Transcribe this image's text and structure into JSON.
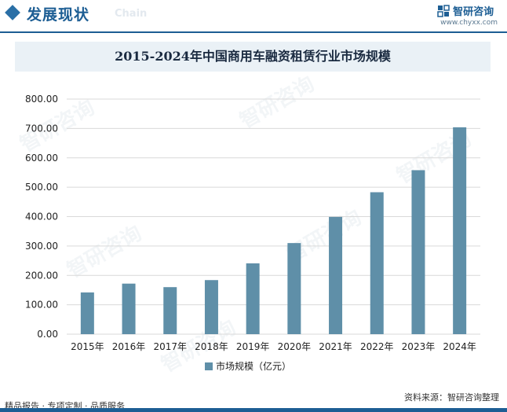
{
  "header": {
    "title": "发展现状",
    "title_en": "Chain",
    "brand_name": "智研咨询",
    "brand_url": "www.chyxx.com"
  },
  "watermark": "智研咨询",
  "chart_data": {
    "type": "bar",
    "title": "2015-2024年中国商用车融资租赁行业市场规模",
    "categories": [
      "2015年",
      "2016年",
      "2017年",
      "2018年",
      "2019年",
      "2020年",
      "2021年",
      "2022年",
      "2023年",
      "2024年"
    ],
    "series": [
      {
        "name": "市场规模（亿元）",
        "values": [
          142,
          172,
          160,
          184,
          241,
          310,
          399,
          483,
          558,
          704
        ]
      }
    ],
    "ylim": [
      0,
      800
    ],
    "yticks": [
      "0.00",
      "100.00",
      "200.00",
      "300.00",
      "400.00",
      "500.00",
      "600.00",
      "700.00",
      "800.00"
    ],
    "grid": true,
    "legend": "bottom",
    "colors": {
      "bar": "#5f8fa8",
      "grid": "#d9d9d9"
    }
  },
  "footer": {
    "left": "精品报告 · 专项定制 · 品质服务",
    "source": "资料来源：智研咨询整理"
  }
}
